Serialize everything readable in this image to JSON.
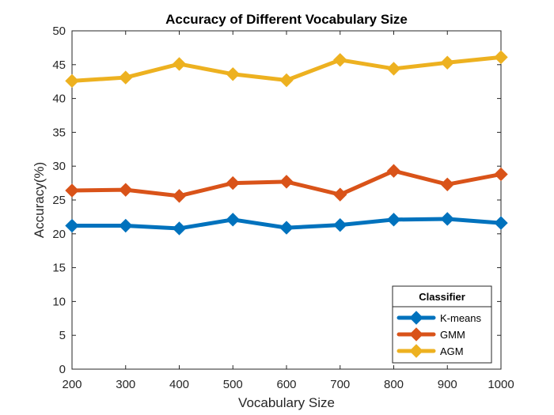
{
  "chart_data": {
    "type": "line",
    "title": "Accuracy of Different Vocabulary Size",
    "xlabel": "Vocabulary Size",
    "ylabel": "Accuracy(%)",
    "x": [
      200,
      300,
      400,
      500,
      600,
      700,
      800,
      900,
      1000
    ],
    "xlim": [
      200,
      1000
    ],
    "ylim": [
      0,
      50
    ],
    "xticks": [
      "200",
      "300",
      "400",
      "500",
      "600",
      "700",
      "800",
      "900",
      "1000"
    ],
    "yticks": [
      "0",
      "5",
      "10",
      "15",
      "20",
      "25",
      "30",
      "35",
      "40",
      "45",
      "50"
    ],
    "grid": false,
    "legend": {
      "title": "Classifier",
      "placement": "bottom-right"
    },
    "marker": "diamond",
    "series": [
      {
        "name": "K-means",
        "color": "#0072BD",
        "values": [
          21.2,
          21.2,
          20.8,
          22.1,
          20.9,
          21.3,
          22.1,
          22.2,
          21.6
        ]
      },
      {
        "name": "GMM",
        "color": "#D95319",
        "values": [
          26.4,
          26.5,
          25.6,
          27.5,
          27.7,
          25.8,
          29.3,
          27.3,
          28.8
        ]
      },
      {
        "name": "AGM",
        "color": "#EDB120",
        "values": [
          42.6,
          43.1,
          45.1,
          43.6,
          42.7,
          45.7,
          44.4,
          45.3,
          46.1
        ]
      }
    ]
  }
}
